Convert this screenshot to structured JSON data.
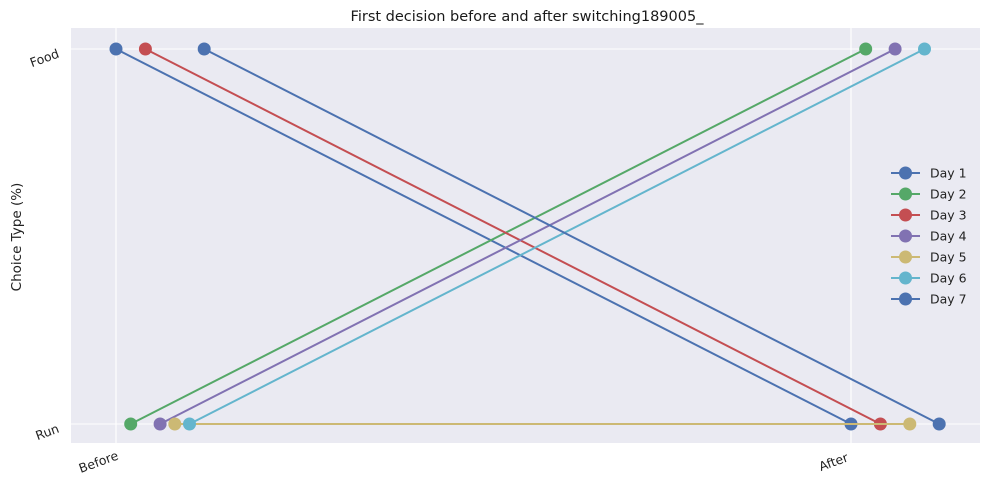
{
  "chart_data": {
    "type": "line",
    "title": "First decision before and after switching189005_",
    "xlabel": "",
    "ylabel": "Choice Type (%)",
    "x_categories": [
      "Before",
      "After"
    ],
    "y_categories": [
      "Run",
      "Food"
    ],
    "grid": true,
    "legend_position": "right",
    "series": [
      {
        "name": "Day 1",
        "color": "#4c72b0",
        "values": [
          "Food",
          "Run"
        ],
        "x": [
          0.0,
          1.0
        ]
      },
      {
        "name": "Day 2",
        "color": "#55a868",
        "values": [
          "Run",
          "Food"
        ],
        "x": [
          0.02,
          1.02
        ]
      },
      {
        "name": "Day 3",
        "color": "#c44e52",
        "values": [
          "Food",
          "Run"
        ],
        "x": [
          0.04,
          1.04
        ]
      },
      {
        "name": "Day 4",
        "color": "#8172b2",
        "values": [
          "Run",
          "Food"
        ],
        "x": [
          0.06,
          1.06
        ]
      },
      {
        "name": "Day 5",
        "color": "#ccb974",
        "values": [
          "Run",
          "Run"
        ],
        "x": [
          0.08,
          1.08
        ]
      },
      {
        "name": "Day 6",
        "color": "#64b5cd",
        "values": [
          "Run",
          "Food"
        ],
        "x": [
          0.1,
          1.1
        ]
      },
      {
        "name": "Day 7",
        "color": "#4c72b0",
        "values": [
          "Food",
          "Run"
        ],
        "x": [
          0.12,
          1.12
        ]
      }
    ]
  }
}
